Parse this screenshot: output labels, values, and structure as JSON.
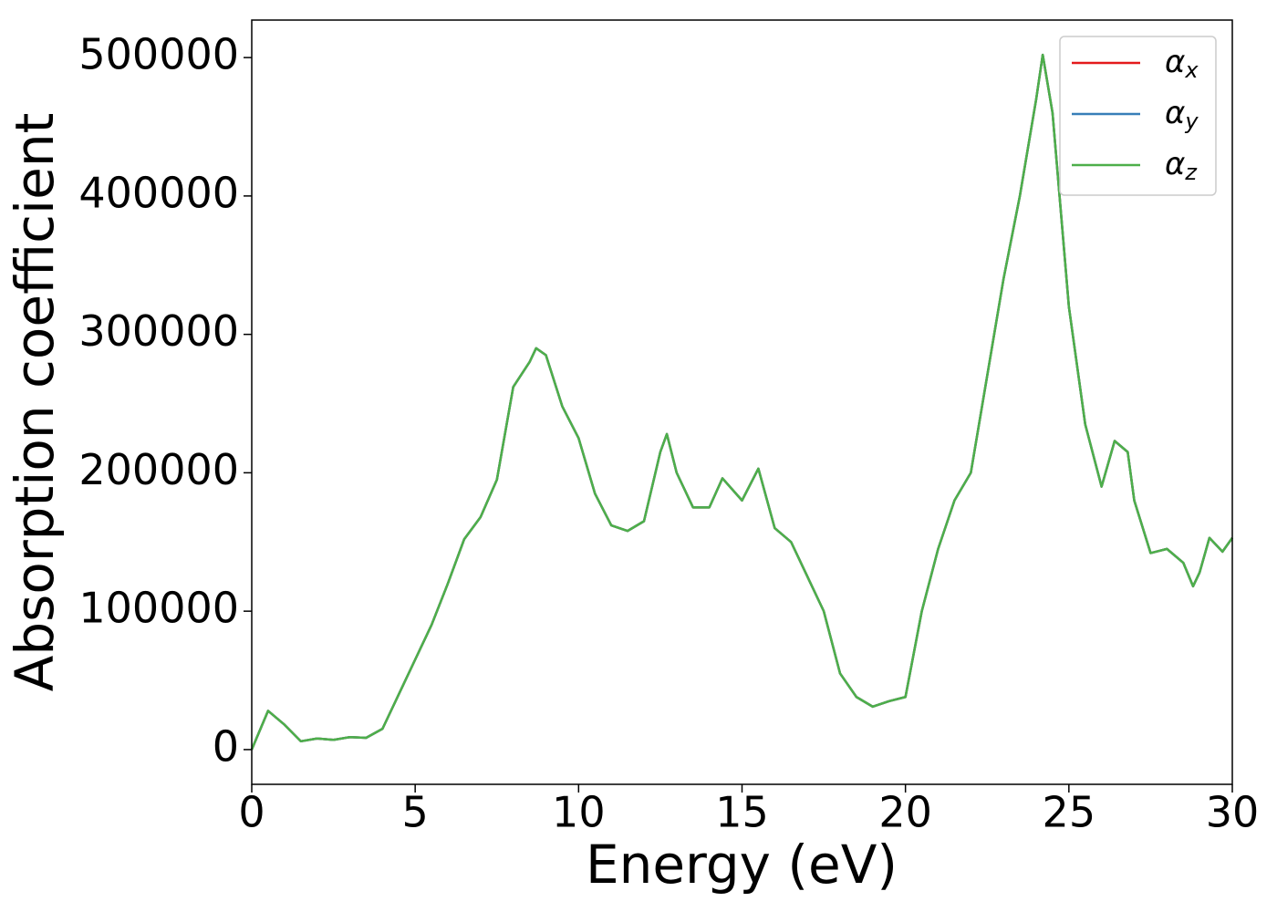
{
  "chart_data": {
    "type": "line",
    "xlabel": "Energy (eV)",
    "ylabel": "Absorption coefficient",
    "x": [
      0,
      0.5,
      1.0,
      1.5,
      2.0,
      2.5,
      3.0,
      3.5,
      4.0,
      4.5,
      5.0,
      5.5,
      6.0,
      6.5,
      7.0,
      7.5,
      8.0,
      8.5,
      8.7,
      9.0,
      9.5,
      10.0,
      10.5,
      11.0,
      11.5,
      12.0,
      12.5,
      12.7,
      13.0,
      13.5,
      14.0,
      14.4,
      15.0,
      15.5,
      16.0,
      16.5,
      17.0,
      17.5,
      18.0,
      18.5,
      19.0,
      19.5,
      20.0,
      20.5,
      21.0,
      21.5,
      22.0,
      22.5,
      23.0,
      23.5,
      24.0,
      24.2,
      24.5,
      25.0,
      25.5,
      26.0,
      26.4,
      26.8,
      27.0,
      27.5,
      28.0,
      28.5,
      28.8,
      29.0,
      29.3,
      29.7,
      30.0
    ],
    "series": [
      {
        "name": "αx",
        "color": "#e41a1c",
        "values": [
          0,
          28000,
          18000,
          6000,
          8000,
          7000,
          9000,
          8500,
          15000,
          40000,
          65000,
          90000,
          120000,
          152000,
          168000,
          195000,
          262000,
          280000,
          290000,
          285000,
          248000,
          225000,
          185000,
          162000,
          158000,
          165000,
          215000,
          228000,
          200000,
          175000,
          175000,
          196000,
          180000,
          203000,
          160000,
          150000,
          125000,
          100000,
          55000,
          38000,
          31000,
          35000,
          38000,
          100000,
          145000,
          180000,
          200000,
          270000,
          340000,
          400000,
          470000,
          502000,
          460000,
          320000,
          235000,
          190000,
          223000,
          215000,
          180000,
          142000,
          145000,
          135000,
          118000,
          128000,
          153000,
          143000,
          153000
        ]
      },
      {
        "name": "αy",
        "color": "#377eb8",
        "values": [
          0,
          28000,
          18000,
          6000,
          8000,
          7000,
          9000,
          8500,
          15000,
          40000,
          65000,
          90000,
          120000,
          152000,
          168000,
          195000,
          262000,
          280000,
          290000,
          285000,
          248000,
          225000,
          185000,
          162000,
          158000,
          165000,
          215000,
          228000,
          200000,
          175000,
          175000,
          196000,
          180000,
          203000,
          160000,
          150000,
          125000,
          100000,
          55000,
          38000,
          31000,
          35000,
          38000,
          100000,
          145000,
          180000,
          200000,
          270000,
          340000,
          400000,
          470000,
          502000,
          460000,
          320000,
          235000,
          190000,
          223000,
          215000,
          180000,
          142000,
          145000,
          135000,
          118000,
          128000,
          153000,
          143000,
          153000
        ]
      },
      {
        "name": "αz",
        "color": "#4daf4a",
        "values": [
          0,
          28000,
          18000,
          6000,
          8000,
          7000,
          9000,
          8500,
          15000,
          40000,
          65000,
          90000,
          120000,
          152000,
          168000,
          195000,
          262000,
          280000,
          290000,
          285000,
          248000,
          225000,
          185000,
          162000,
          158000,
          165000,
          215000,
          228000,
          200000,
          175000,
          175000,
          196000,
          180000,
          203000,
          160000,
          150000,
          125000,
          100000,
          55000,
          38000,
          31000,
          35000,
          38000,
          100000,
          145000,
          180000,
          200000,
          270000,
          340000,
          400000,
          470000,
          502000,
          460000,
          320000,
          235000,
          190000,
          223000,
          215000,
          180000,
          142000,
          145000,
          135000,
          118000,
          128000,
          153000,
          143000,
          153000
        ]
      }
    ],
    "xlim": [
      0,
      30
    ],
    "xticks": [
      0,
      5,
      10,
      15,
      20,
      25,
      30
    ],
    "ylim": [
      -25100,
      527100
    ],
    "yticks": [
      0,
      100000,
      200000,
      300000,
      400000,
      500000
    ],
    "grid": false,
    "legend": "upper right"
  }
}
